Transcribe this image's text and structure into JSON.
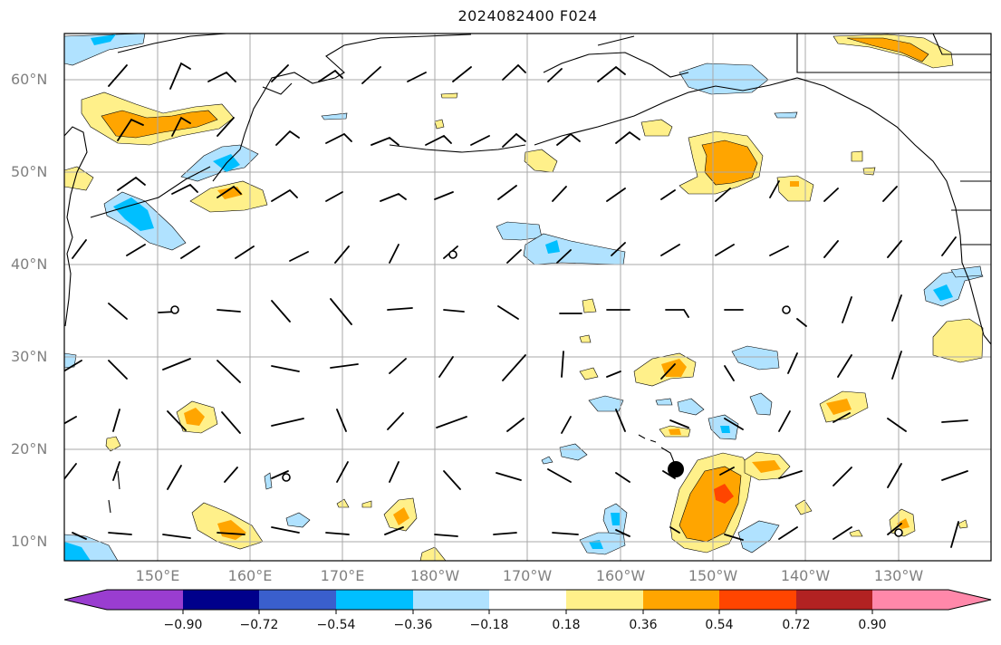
{
  "title": "2024082400 F024",
  "lat_labels": [
    "60°N",
    "50°N",
    "40°N",
    "30°N",
    "20°N",
    "10°N"
  ],
  "lon_labels": [
    "150°E",
    "160°E",
    "170°E",
    "180°W",
    "170°W",
    "160°W",
    "150°W",
    "140°W",
    "130°W"
  ],
  "colorbar": {
    "colors": [
      "#9a3dd0",
      "#00008b",
      "#3a5fcd",
      "#00bfff",
      "#b0e2ff",
      "#ffffff",
      "#fff08a",
      "#ffa500",
      "#ff4500",
      "#b22222",
      "#ff88aa"
    ],
    "tick_labels": [
      "−0.90",
      "−0.72",
      "−0.54",
      "−0.36",
      "−0.18",
      "0.18",
      "0.36",
      "0.54",
      "0.72",
      "0.90"
    ]
  },
  "colors": {
    "neg_light": "#b0e2ff",
    "neg_mid": "#00bfff",
    "pos_light": "#fff08a",
    "pos_mid": "#ffa500",
    "pos_strong": "#ff4500",
    "grid": "#a8a8a8",
    "coast": "#000000"
  }
}
